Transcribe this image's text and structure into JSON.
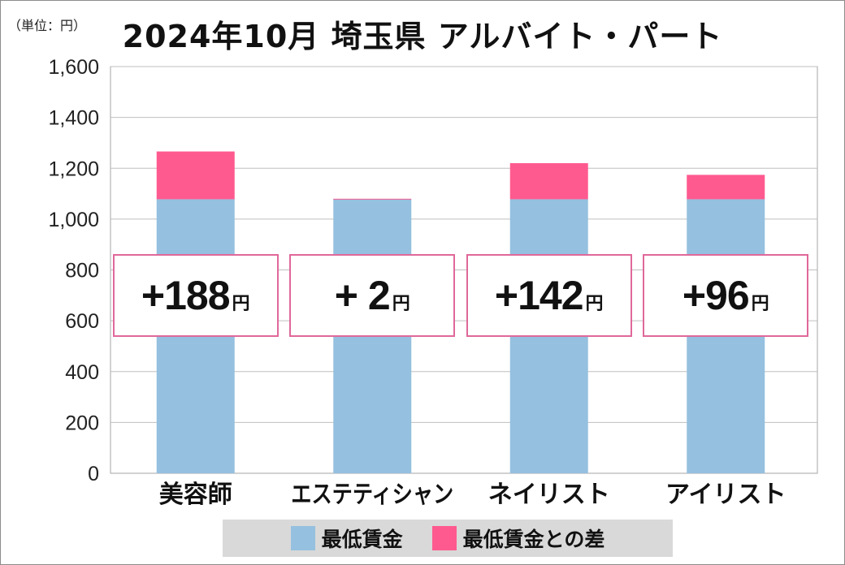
{
  "unit_label": "（単位：円）",
  "colors": {
    "base": "#95c0df",
    "diff": "#ff5a8f",
    "box_border": "#e0689a",
    "grid": "#bfbfbf"
  },
  "legend": {
    "items": [
      {
        "label": "最低賃金",
        "color": "#95c0df"
      },
      {
        "label": "最低賃金との差",
        "color": "#ff5a8f"
      }
    ]
  },
  "chart_data": {
    "type": "bar",
    "stacked": true,
    "title": "2024年10月 埼玉県 アルバイト・パート",
    "xlabel": "",
    "ylabel": "",
    "ylim": [
      0,
      1600
    ],
    "yticks": [
      "0",
      "200",
      "400",
      "600",
      "800",
      "1,000",
      "1,200",
      "1,400",
      "1,600"
    ],
    "grid": true,
    "legend_position": "bottom",
    "categories": [
      "美容師",
      "エステティシャン",
      "ネイリスト",
      "アイリスト"
    ],
    "series": [
      {
        "name": "最低賃金",
        "values": [
          1078,
          1078,
          1078,
          1078
        ]
      },
      {
        "name": "最低賃金との差",
        "values": [
          188,
          2,
          142,
          96
        ]
      }
    ],
    "annotations": [
      {
        "text": "+188",
        "suffix": "円"
      },
      {
        "text": "+ 2",
        "suffix": "円"
      },
      {
        "text": "+142",
        "suffix": "円"
      },
      {
        "text": "+96",
        "suffix": "円"
      }
    ]
  }
}
